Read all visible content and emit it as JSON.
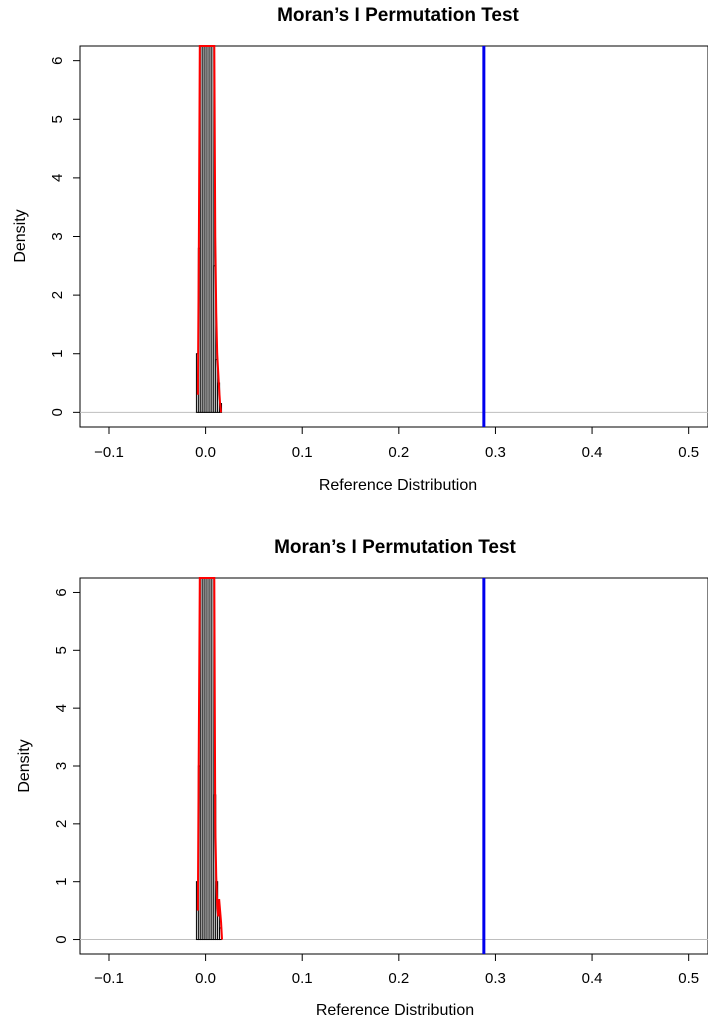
{
  "chart_data": [
    {
      "type": "histogram",
      "title": "Moran’s I Permutation Test",
      "xlabel": "Reference Distribution",
      "ylabel": "Density",
      "xlim": [
        -0.13,
        0.52
      ],
      "ylim": [
        -0.25,
        6.25
      ],
      "xticks": [
        "-0.1",
        "0.0",
        "0.1",
        "0.2",
        "0.3",
        "0.4",
        "0.5"
      ],
      "yticks": [
        "0",
        "1",
        "2",
        "3",
        "4",
        "5",
        "6"
      ],
      "grid": false,
      "bins": {
        "x": [
          -0.0085,
          -0.0065,
          -0.0045,
          -0.0025,
          -0.0005,
          0.0015,
          0.0035,
          0.0055,
          0.0075,
          0.0095,
          0.0115,
          0.0135,
          0.0155
        ],
        "density": [
          1.0,
          2.8,
          6.25,
          6.25,
          6.25,
          6.25,
          6.25,
          6.25,
          6.25,
          2.5,
          0.9,
          0.5,
          0.15
        ]
      },
      "density_curve": {
        "color": "#ff0000",
        "x": [
          -0.008,
          -0.007,
          -0.006,
          -0.005,
          -0.004,
          0.009,
          0.01,
          0.011,
          0.012,
          0.013,
          0.014,
          0.015,
          0.016
        ],
        "y": [
          0.3,
          2.8,
          6.25,
          6.25,
          6.25,
          6.25,
          3.0,
          1.7,
          1.0,
          0.7,
          0.4,
          0.15,
          0.0
        ]
      },
      "observed": {
        "x": 0.288,
        "color": "#0000ee"
      }
    },
    {
      "type": "histogram",
      "title": "Moran’s I Permutation Test",
      "xlabel": "Reference Distribution",
      "ylabel": "Density",
      "xlim": [
        -0.13,
        0.52
      ],
      "ylim": [
        -0.25,
        6.25
      ],
      "xticks": [
        "-0.1",
        "0.0",
        "0.1",
        "0.2",
        "0.3",
        "0.4",
        "0.5"
      ],
      "yticks": [
        "0",
        "1",
        "2",
        "3",
        "4",
        "5",
        "6"
      ],
      "grid": false,
      "bins": {
        "x": [
          -0.0085,
          -0.0065,
          -0.0045,
          -0.0025,
          -0.0005,
          0.0015,
          0.0035,
          0.0055,
          0.0075,
          0.0095,
          0.0115,
          0.0135,
          0.0155
        ],
        "density": [
          1.0,
          3.0,
          6.25,
          6.25,
          6.25,
          6.25,
          6.25,
          6.25,
          6.25,
          2.5,
          1.0,
          0.6,
          0.2
        ]
      },
      "density_curve": {
        "color": "#ff0000",
        "x": [
          -0.008,
          -0.007,
          -0.006,
          -0.005,
          0.009,
          0.01,
          0.011,
          0.012,
          0.013,
          0.014,
          0.015,
          0.016,
          0.017
        ],
        "y": [
          0.5,
          3.5,
          6.25,
          6.25,
          6.25,
          2.0,
          1.1,
          0.6,
          0.4,
          0.7,
          0.5,
          0.3,
          0.0
        ]
      },
      "observed": {
        "x": 0.288,
        "color": "#0000ee"
      }
    }
  ]
}
